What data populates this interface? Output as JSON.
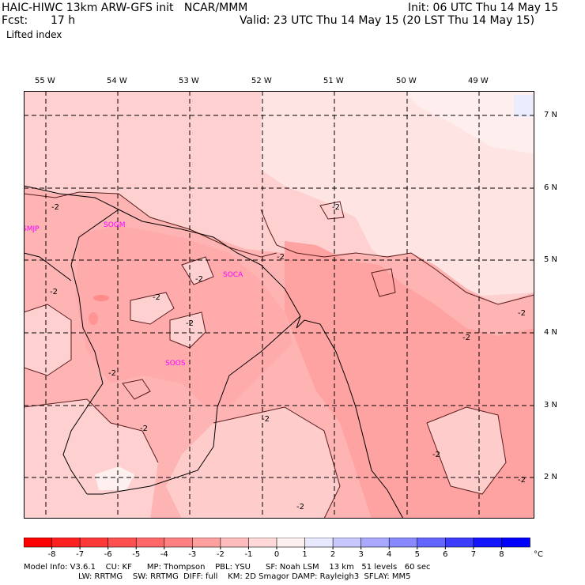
{
  "header": {
    "model_title": "HAIC-HIWC 13km ARW-GFS init   NCAR/MMM",
    "init": "Init: 06 UTC Thu 14 May 15",
    "fcst_label": "Fcst:",
    "fcst_value": "17 h",
    "valid": "Valid: 23 UTC Thu 14 May 15 (20 LST Thu 14 May 15)",
    "field": "Lifted index"
  },
  "longitudes": [
    "55 W",
    "54 W",
    "53 W",
    "52 W",
    "51 W",
    "50 W",
    "49 W"
  ],
  "latitudes": [
    "7 N",
    "6 N",
    "5 N",
    "4 N",
    "3 N",
    "2 N"
  ],
  "stations": [
    "SMJP",
    "SOGM",
    "SOCA",
    "SOOS"
  ],
  "contour_label": "-2",
  "colorbar": {
    "ticks": [
      "-8",
      "-7",
      "-6",
      "-5",
      "-4",
      "-3",
      "-2",
      "-1",
      "0",
      "1",
      "2",
      "3",
      "4",
      "5",
      "6",
      "7",
      "8"
    ],
    "unit": "°C",
    "colors": [
      "#ff0000",
      "#ff2020",
      "#ff3838",
      "#ff5050",
      "#ff6868",
      "#ff8080",
      "#ffa0a0",
      "#ffbcbc",
      "#ffd8d8",
      "#fff0f0",
      "#e8e8ff",
      "#c8c8ff",
      "#a8a8ff",
      "#8888ff",
      "#6464ff",
      "#3c3cff",
      "#1414ff",
      "#0000ff"
    ]
  },
  "footer": {
    "line1": "Model Info: V3.6.1    CU: KF      MP: Thompson    PBL: YSU      SF: Noah LSM    13 km   51 levels   60 sec",
    "line2": "LW: RRTMG    SW: RRTMG  DIFF: full    KM: 2D Smagor DAMP: Rayleigh3  SFLAY: MM5"
  }
}
